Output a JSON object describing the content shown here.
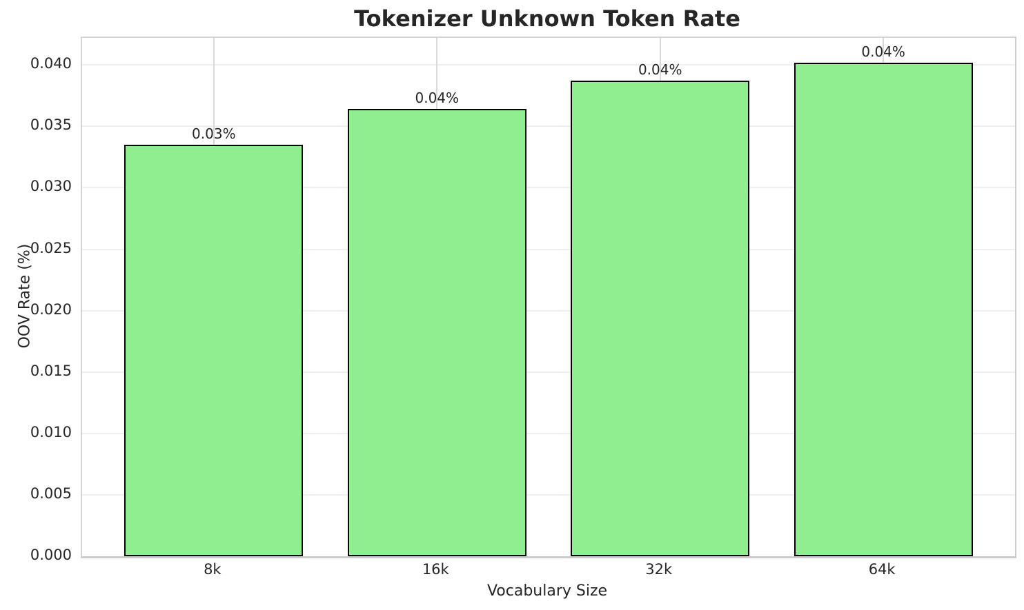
{
  "chart_data": {
    "type": "bar",
    "title": "Tokenizer Unknown Token Rate",
    "xlabel": "Vocabulary Size",
    "ylabel": "OOV Rate (%)",
    "categories": [
      "8k",
      "16k",
      "32k",
      "64k"
    ],
    "values": [
      0.0335,
      0.0364,
      0.0387,
      0.0402
    ],
    "bar_labels": [
      "0.03%",
      "0.04%",
      "0.04%",
      "0.04%"
    ],
    "ytick_values": [
      0.0,
      0.005,
      0.01,
      0.015,
      0.02,
      0.025,
      0.03,
      0.035,
      0.04
    ],
    "ytick_labels": [
      "0.000",
      "0.005",
      "0.010",
      "0.015",
      "0.020",
      "0.025",
      "0.030",
      "0.035",
      "0.040"
    ],
    "ylim": [
      0,
      0.0422
    ],
    "grid": true,
    "legend_position": "none",
    "colors": {
      "bar_fill": "#90EE90",
      "bar_edge": "#000000",
      "grid_horizontal": "#efefef",
      "grid_vertical": "#d9d9d9",
      "spine": "#cccccc",
      "text": "#262626",
      "background": "#ffffff"
    }
  }
}
